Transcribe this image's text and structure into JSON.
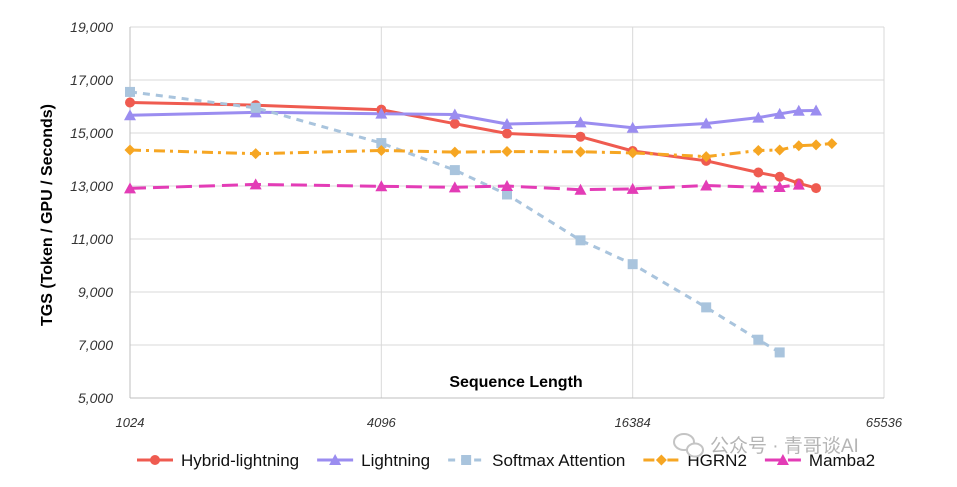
{
  "chart_data": {
    "type": "line",
    "xscale": "log2",
    "xlabel": "Sequence Length",
    "ylabel": "TGS (Token / GPU / Seconds)",
    "xlim": [
      1024,
      65536
    ],
    "ylim": [
      5000,
      19000
    ],
    "xticks": [
      1024,
      4096,
      16384,
      65536
    ],
    "xtick_labels": [
      "1024",
      "4096",
      "16384",
      "65536"
    ],
    "yticks": [
      5000,
      7000,
      9000,
      11000,
      13000,
      15000,
      17000,
      19000
    ],
    "ytick_labels": [
      "5,000",
      "7,000",
      "9,000",
      "11,000",
      "13,000",
      "15,000",
      "17,000",
      "19,000"
    ],
    "series": [
      {
        "name": "Hybrid-lightning",
        "color": "#ef5b50",
        "dash": "solid",
        "marker": "circle",
        "x": [
          1024,
          2048,
          4096,
          6144,
          8192,
          12288,
          16384,
          24576,
          32768,
          36864,
          40960,
          45056
        ],
        "y": [
          16150,
          16050,
          15880,
          15350,
          14980,
          14860,
          14320,
          13950,
          13510,
          13350,
          13100,
          12920
        ]
      },
      {
        "name": "Lightning",
        "color": "#9b8df0",
        "dash": "solid",
        "marker": "triangle",
        "x": [
          1024,
          2048,
          4096,
          6144,
          8192,
          12288,
          16384,
          24576,
          32768,
          36864,
          40960,
          45056
        ],
        "y": [
          15670,
          15780,
          15730,
          15700,
          15340,
          15400,
          15200,
          15360,
          15580,
          15720,
          15840,
          15850
        ]
      },
      {
        "name": "Softmax Attention",
        "color": "#a9c4dd",
        "dash": "dashed",
        "marker": "square",
        "x": [
          1024,
          2048,
          4096,
          6144,
          8192,
          12288,
          16384,
          24576,
          32768,
          36864
        ],
        "y": [
          16550,
          15950,
          14620,
          13600,
          12680,
          10950,
          10050,
          8420,
          7200,
          6720
        ]
      },
      {
        "name": "HGRN2",
        "color": "#f6a623",
        "dash": "dashdot",
        "marker": "diamond",
        "x": [
          1024,
          2048,
          4096,
          6144,
          8192,
          12288,
          16384,
          24576,
          32768,
          36864,
          40960,
          45056,
          49152
        ],
        "y": [
          14360,
          14220,
          14340,
          14280,
          14300,
          14290,
          14250,
          14110,
          14340,
          14360,
          14520,
          14550,
          14600
        ]
      },
      {
        "name": "Mamba2",
        "color": "#e33cb6",
        "dash": "longdash",
        "marker": "triangle",
        "x": [
          1024,
          2048,
          4096,
          6144,
          8192,
          12288,
          16384,
          24576,
          32768,
          36864,
          40960
        ],
        "y": [
          12910,
          13060,
          12990,
          12950,
          13000,
          12860,
          12890,
          13020,
          12950,
          12960,
          13050
        ]
      }
    ]
  },
  "watermark": "公众号 · 青哥谈AI"
}
